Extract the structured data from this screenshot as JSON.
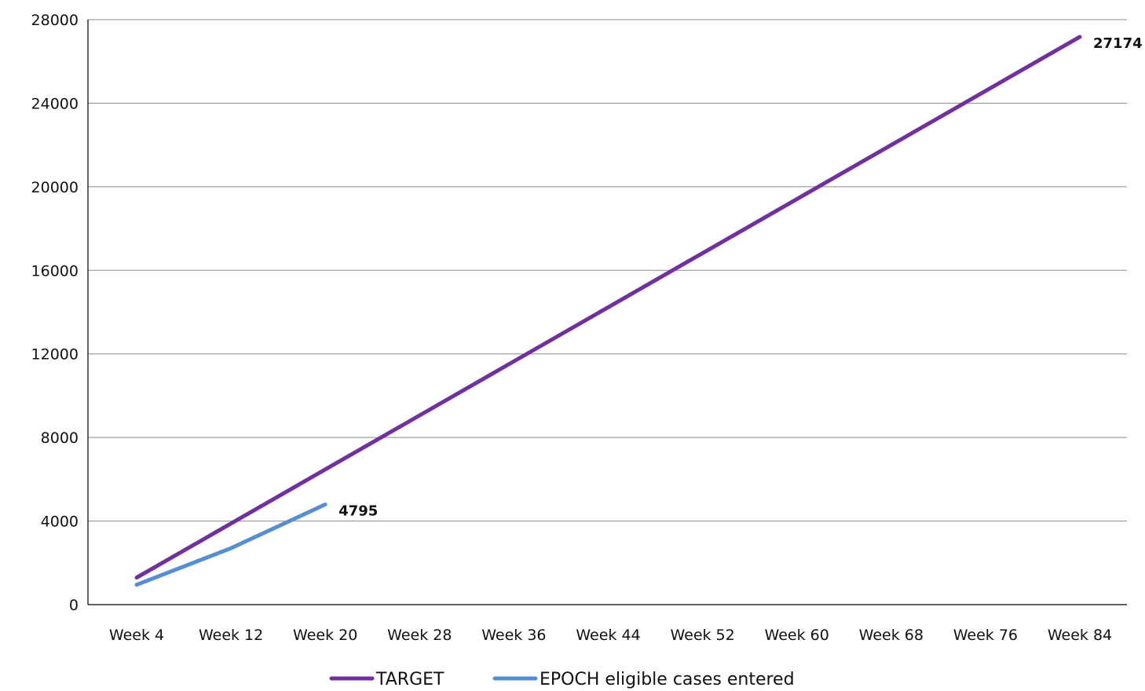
{
  "chart_data": {
    "type": "line",
    "title": "",
    "xlabel": "",
    "ylabel": "",
    "categories": [
      "Week 4",
      "Week 12",
      "Week 20",
      "Week 28",
      "Week 36",
      "Week 44",
      "Week 52",
      "Week 60",
      "Week 68",
      "Week 76",
      "Week 84"
    ],
    "ylim": [
      0,
      28000
    ],
    "yticks": [
      0,
      4000,
      8000,
      12000,
      16000,
      20000,
      24000,
      28000
    ],
    "grid": "horizontal",
    "legend": "bottom",
    "series": [
      {
        "name": "TARGET",
        "color": "#7030A0",
        "x": [
          4,
          12,
          20,
          28,
          36,
          44,
          52,
          60,
          68,
          76,
          84
        ],
        "values": [
          1294,
          3882,
          6470,
          9058,
          11646,
          14234,
          16822,
          19410,
          21998,
          24586,
          27174
        ],
        "end_label": "27174"
      },
      {
        "name": "EPOCH eligible cases entered",
        "color": "#558ED5",
        "x": [
          4,
          12,
          20
        ],
        "values": [
          950,
          2700,
          4795
        ],
        "end_label": "4795"
      }
    ]
  }
}
